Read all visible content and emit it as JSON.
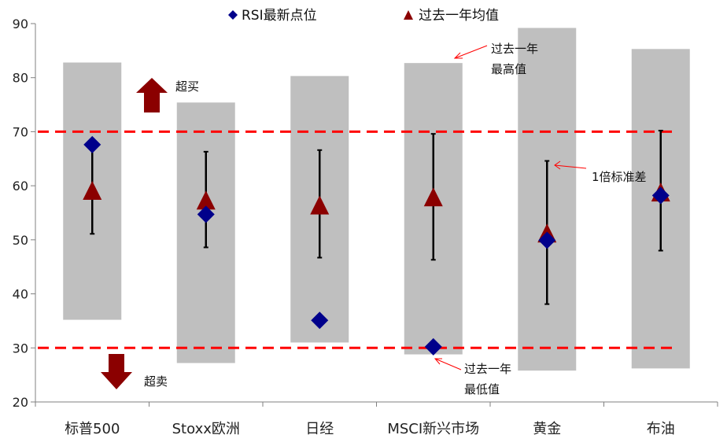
{
  "chart_data": {
    "type": "range-bar-errorbar",
    "ylim": [
      20,
      90
    ],
    "yticks": [
      "20",
      "30",
      "40",
      "50",
      "60",
      "70",
      "80",
      "90"
    ],
    "categories": [
      "标普500",
      "Stoxx欧洲",
      "日经",
      "MSCI新兴市场",
      "黄金",
      "布油"
    ],
    "range_low": [
      35.2,
      27.2,
      31.0,
      28.8,
      25.8,
      26.2
    ],
    "range_high": [
      82.8,
      75.4,
      80.3,
      82.7,
      89.2,
      85.3
    ],
    "rsi_latest": [
      67.6,
      54.7,
      35.1,
      30.2,
      49.9,
      58.2
    ],
    "hist_mean": [
      59.0,
      57.2,
      56.3,
      57.8,
      51.1,
      58.7
    ],
    "err_low": [
      51.1,
      48.6,
      46.7,
      46.3,
      38.1,
      48.0
    ],
    "err_high": [
      67.0,
      66.3,
      66.6,
      69.6,
      64.6,
      70.2
    ],
    "thresholds": [
      {
        "value": 70,
        "color": "#ff0000"
      },
      {
        "value": 30,
        "color": "#ff0000"
      }
    ],
    "legend": [
      {
        "label": "RSI最新点位",
        "marker": "diamond",
        "color": "#00008b"
      },
      {
        "label": "过去一年均值",
        "marker": "triangle",
        "color": "#8b0000"
      }
    ],
    "annotations": {
      "overbought": "超买",
      "oversold": "超卖",
      "year_high": "过去一年最高值",
      "year_low": "过去一年最低值",
      "std": "1倍标准差"
    },
    "colors": {
      "range_bar": "#bfbfbf",
      "diamond": "#00008b",
      "triangle": "#8b0000",
      "arrow": "#8b0000",
      "threshold": "#ff0000",
      "axis": "#808080"
    }
  }
}
